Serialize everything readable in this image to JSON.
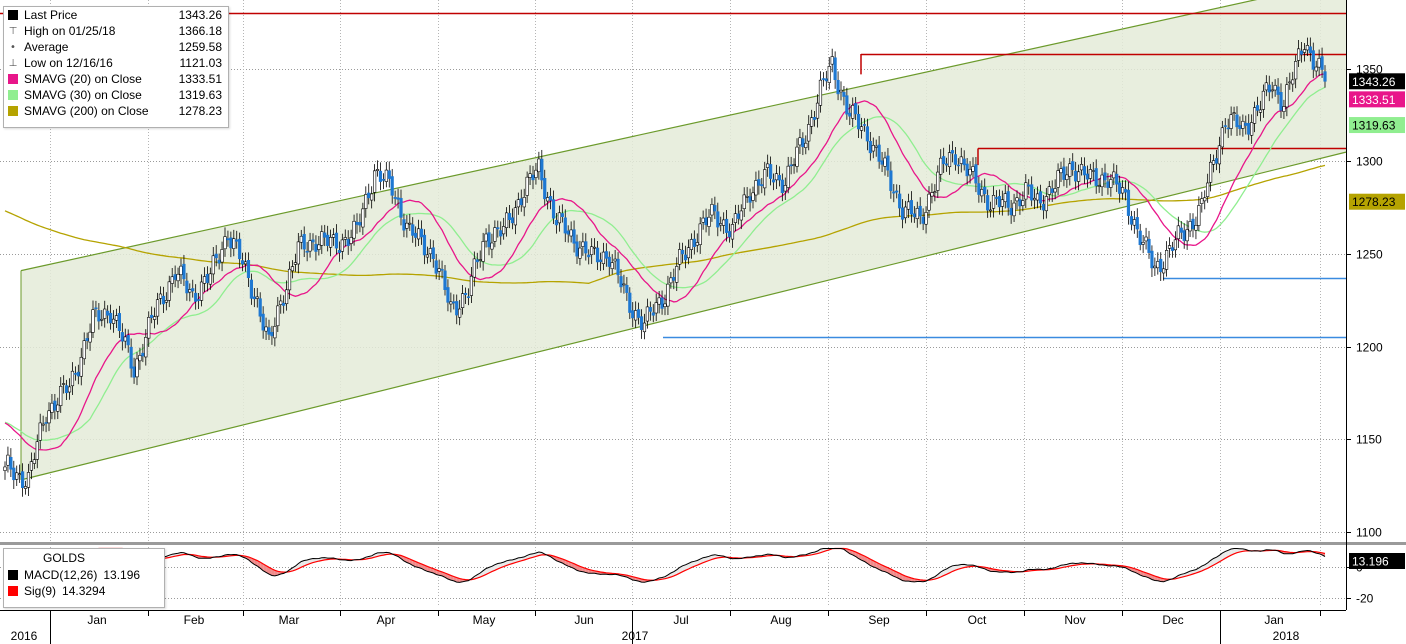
{
  "legend": {
    "rows": [
      {
        "label": "Last Price",
        "value": "1343.26",
        "swatch": "#000000",
        "kind": "box"
      },
      {
        "label": "High on 01/25/18",
        "value": "1366.18",
        "swatch": "#777777",
        "kind": "high"
      },
      {
        "label": "Average",
        "value": "1259.58",
        "swatch": "#777777",
        "kind": "avg"
      },
      {
        "label": "Low on 12/16/16",
        "value": "1121.03",
        "swatch": "#777777",
        "kind": "low"
      },
      {
        "label": "SMAVG (20) on Close",
        "value": "1333.51",
        "swatch": "#e8168a",
        "kind": "box"
      },
      {
        "label": "SMAVG (30) on Close",
        "value": "1319.63",
        "swatch": "#90ee90",
        "kind": "box"
      },
      {
        "label": "SMAVG (200) on Close",
        "value": "1278.23",
        "swatch": "#b5a300",
        "kind": "box"
      }
    ]
  },
  "macd_legend": {
    "title": "GOLDS",
    "rows": [
      {
        "label": "MACD(12,26)",
        "value": "13.196",
        "swatch": "#000000"
      },
      {
        "label": "Sig(9)",
        "value": "14.3294",
        "swatch": "#ff0000"
      }
    ]
  },
  "axis_tags": [
    {
      "text": "1343.26",
      "value": 1343.26,
      "bg": "#000000",
      "fg": "#ffffff"
    },
    {
      "text": "1333.51",
      "value": 1333.51,
      "bg": "#e8168a",
      "fg": "#ffffff"
    },
    {
      "text": "1319.63",
      "value": 1319.63,
      "bg": "#90ee90",
      "fg": "#000000"
    },
    {
      "text": "1278.23",
      "value": 1278.23,
      "bg": "#b5a300",
      "fg": "#000000"
    }
  ],
  "macd_tag": {
    "text": "13.196",
    "bg": "#000000",
    "fg": "#ffffff"
  },
  "x_labels": {
    "months": [
      "Jan",
      "Feb",
      "Mar",
      "Apr",
      "May",
      "Jun",
      "Jul",
      "Aug",
      "Sep",
      "Oct",
      "Nov",
      "Dec",
      "Jan"
    ],
    "years": [
      "2016",
      "2017",
      "2018"
    ]
  },
  "colors": {
    "up": "#ffffff",
    "down": "#1e78d2",
    "channel_fill": "#e4ebd8",
    "channel_line": "#6b9a2b",
    "resistance": "#c00000",
    "support": "#3a8be0",
    "sma20": "#e8168a",
    "sma30": "#90ee90",
    "sma200": "#b5a300"
  },
  "chart_data": {
    "type": "line",
    "title": "",
    "y_ticks": [
      1100,
      1150,
      1200,
      1250,
      1300,
      1350
    ],
    "macd_ticks": [
      0,
      -20
    ],
    "ylim": [
      1095,
      1385
    ],
    "macd_ylim": [
      -26,
      13
    ],
    "x_month_labels": [
      "Jan",
      "Feb",
      "Mar",
      "Apr",
      "May",
      "Jun",
      "Jul",
      "Aug",
      "Sep",
      "Oct",
      "Nov",
      "Dec",
      "Jan"
    ],
    "price_anchors": [
      [
        0,
        1135
      ],
      [
        8,
        1128
      ],
      [
        14,
        1165
      ],
      [
        22,
        1178
      ],
      [
        30,
        1214
      ],
      [
        36,
        1220
      ],
      [
        44,
        1188
      ],
      [
        52,
        1222
      ],
      [
        58,
        1240
      ],
      [
        64,
        1228
      ],
      [
        70,
        1238
      ],
      [
        76,
        1262
      ],
      [
        80,
        1248
      ],
      [
        86,
        1225
      ],
      [
        90,
        1200
      ],
      [
        94,
        1225
      ],
      [
        100,
        1252
      ],
      [
        106,
        1258
      ],
      [
        112,
        1255
      ],
      [
        120,
        1262
      ],
      [
        126,
        1295
      ],
      [
        132,
        1285
      ],
      [
        138,
        1262
      ],
      [
        146,
        1250
      ],
      [
        152,
        1220
      ],
      [
        158,
        1230
      ],
      [
        164,
        1260
      ],
      [
        170,
        1262
      ],
      [
        176,
        1282
      ],
      [
        182,
        1296
      ],
      [
        188,
        1268
      ],
      [
        194,
        1258
      ],
      [
        200,
        1248
      ],
      [
        206,
        1250
      ],
      [
        212,
        1225
      ],
      [
        218,
        1212
      ],
      [
        224,
        1226
      ],
      [
        230,
        1245
      ],
      [
        236,
        1262
      ],
      [
        242,
        1272
      ],
      [
        248,
        1262
      ],
      [
        254,
        1285
      ],
      [
        260,
        1292
      ],
      [
        266,
        1290
      ],
      [
        272,
        1310
      ],
      [
        278,
        1338
      ],
      [
        282,
        1352
      ],
      [
        288,
        1325
      ],
      [
        294,
        1315
      ],
      [
        300,
        1295
      ],
      [
        306,
        1275
      ],
      [
        312,
        1268
      ],
      [
        316,
        1285
      ],
      [
        320,
        1298
      ],
      [
        324,
        1305
      ],
      [
        330,
        1290
      ],
      [
        336,
        1278
      ],
      [
        342,
        1276
      ],
      [
        348,
        1283
      ],
      [
        352,
        1278
      ],
      [
        358,
        1287
      ],
      [
        364,
        1298
      ],
      [
        370,
        1290
      ],
      [
        376,
        1292
      ],
      [
        382,
        1280
      ],
      [
        388,
        1255
      ],
      [
        392,
        1242
      ],
      [
        396,
        1250
      ],
      [
        402,
        1262
      ],
      [
        408,
        1275
      ],
      [
        412,
        1300
      ],
      [
        416,
        1322
      ],
      [
        422,
        1318
      ],
      [
        428,
        1330
      ],
      [
        432,
        1342
      ],
      [
        436,
        1332
      ],
      [
        440,
        1350
      ],
      [
        443,
        1366
      ],
      [
        446,
        1355
      ],
      [
        450,
        1343.26
      ]
    ],
    "horizontal_levels": [
      {
        "value": 1380,
        "color": "#c00000"
      },
      {
        "value": 1358,
        "color": "#c00000"
      },
      {
        "value": 1307,
        "color": "#c00000"
      },
      {
        "value": 1237,
        "color": "#3a8be0"
      },
      {
        "value": 1205,
        "color": "#3a8be0"
      }
    ],
    "channel": {
      "lower_start": 1128,
      "lower_end": 1305,
      "upper_start": 1241,
      "upper_end": 1398
    },
    "series": [
      {
        "name": "Last Price",
        "last": 1343.26
      },
      {
        "name": "SMAVG (20) on Close",
        "last": 1333.51
      },
      {
        "name": "SMAVG (30) on Close",
        "last": 1319.63
      },
      {
        "name": "SMAVG (200) on Close",
        "last": 1278.23
      },
      {
        "name": "MACD(12,26)",
        "last": 13.196
      },
      {
        "name": "Sig(9)",
        "last": 14.3294
      }
    ],
    "grid": true,
    "legend_position": "top-left"
  }
}
